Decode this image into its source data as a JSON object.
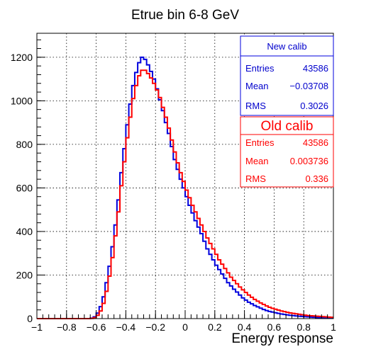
{
  "chart_data": {
    "type": "histogram",
    "title": "Etrue bin 6-8 GeV",
    "xlabel": "Energy response",
    "ylabel": "",
    "xlim": [
      -1,
      1
    ],
    "ylim": [
      0,
      1310
    ],
    "grid": true,
    "xticks": [
      -1,
      -0.8,
      -0.6,
      -0.4,
      -0.2,
      0,
      0.2,
      0.4,
      0.6,
      0.8,
      1
    ],
    "xtick_labels": [
      "−1",
      "−0.8",
      "−0.6",
      "−0.4",
      "−0.2",
      "0",
      "0.2",
      "0.4",
      "0.6",
      "0.8",
      "1"
    ],
    "yticks": [
      0,
      200,
      400,
      600,
      800,
      1000,
      1200
    ],
    "ytick_labels": [
      "0",
      "200",
      "400",
      "600",
      "800",
      "1000",
      "1200"
    ],
    "bin_width": 0.02,
    "bins_start": -1,
    "series": [
      {
        "name": "New calib",
        "color": "#0000dd",
        "values": [
          0,
          0,
          0,
          0,
          0,
          0,
          0,
          0,
          0,
          0,
          0,
          0,
          0,
          0,
          0,
          0,
          0,
          0,
          2,
          8,
          25,
          55,
          100,
          165,
          240,
          330,
          430,
          545,
          670,
          780,
          890,
          985,
          1070,
          1130,
          1175,
          1200,
          1190,
          1165,
          1135,
          1100,
          1055,
          1005,
          955,
          900,
          850,
          790,
          730,
          685,
          640,
          600,
          560,
          520,
          485,
          450,
          420,
          390,
          355,
          320,
          295,
          270,
          245,
          225,
          205,
          185,
          165,
          150,
          135,
          122,
          108,
          95,
          85,
          75,
          68,
          60,
          54,
          48,
          42,
          37,
          33,
          30,
          27,
          24,
          21,
          19,
          17,
          15,
          14,
          12,
          11,
          10,
          9,
          8,
          7,
          6,
          5,
          5,
          4,
          4,
          3,
          3
        ],
        "stats": {
          "entries_label": "Entries",
          "entries": "43586",
          "mean_label": "Mean",
          "mean": "−0.03708",
          "rms_label": "RMS",
          "rms": "0.3026"
        }
      },
      {
        "name": "Old calib",
        "color": "#ff0000",
        "values": [
          0,
          0,
          0,
          0,
          0,
          0,
          0,
          0,
          0,
          0,
          0,
          0,
          0,
          0,
          0,
          0,
          0,
          0,
          1,
          4,
          15,
          35,
          70,
          125,
          195,
          280,
          380,
          490,
          610,
          720,
          830,
          925,
          1010,
          1070,
          1115,
          1140,
          1140,
          1125,
          1105,
          1080,
          1050,
          1015,
          970,
          925,
          875,
          820,
          765,
          715,
          670,
          630,
          590,
          555,
          520,
          490,
          460,
          430,
          400,
          370,
          345,
          320,
          295,
          270,
          250,
          230,
          210,
          190,
          175,
          160,
          145,
          132,
          120,
          108,
          98,
          88,
          80,
          72,
          65,
          58,
          52,
          47,
          43,
          39,
          35,
          32,
          29,
          26,
          24,
          22,
          20,
          18,
          16,
          14,
          13,
          12,
          11,
          10,
          9,
          8,
          7,
          6
        ],
        "stats": {
          "entries_label": "Entries",
          "entries": "43586",
          "mean_label": "Mean",
          "mean": "0.003736",
          "rms_label": "RMS",
          "rms": "0.336"
        }
      }
    ]
  }
}
